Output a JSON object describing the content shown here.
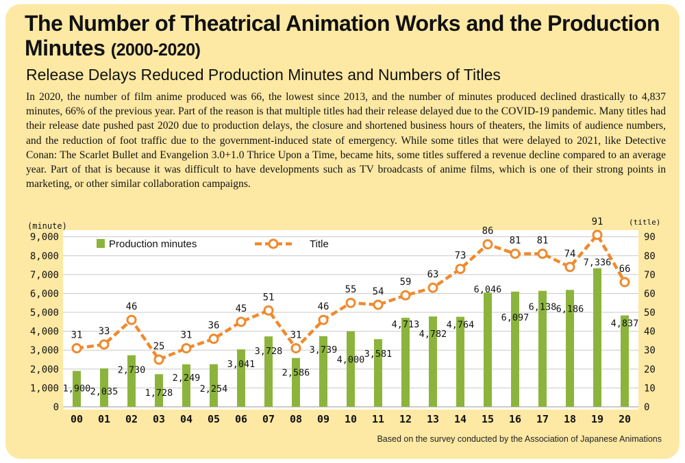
{
  "header": {
    "title_main": "The Number of Theatrical Animation Works and the Production Minutes",
    "title_years": "(2000-2020)",
    "subtitle": "Release Delays Reduced Production Minutes and Numbers of Titles",
    "body": "In 2020, the number of film anime produced was 66, the lowest since 2013, and the number of minutes produced declined drastically to 4,837 minutes, 66% of the previous year. Part of the reason is that multiple titles had their release delayed due to the COVID-19 pandemic. Many titles had their release date pushed past 2020 due to production delays, the closure and shortened business hours of theaters, the limits of audience numbers, and the reduction of foot traffic due to the government-induced state of emergency. While some titles that were delayed to 2021, like Detective Conan: The Scarlet Bullet and Evangelion 3.0+1.0 Thrice Upon a Time, became hits, some titles  suffered a revenue decline compared to an average year. Part of that is because it was difficult to have developments such as TV broadcasts of anime films, which is one of their strong points in marketing, or other similar collaboration campaigns."
  },
  "source": "Based on the survey conducted by the Association of Japanese Animations",
  "chart_data": {
    "type": "bar",
    "title": "The Number of Theatrical Animation Works and the Production Minutes (2000-2020)",
    "categories": [
      "00",
      "01",
      "02",
      "03",
      "04",
      "05",
      "06",
      "07",
      "08",
      "09",
      "10",
      "11",
      "12",
      "13",
      "14",
      "15",
      "16",
      "17",
      "18",
      "19",
      "20"
    ],
    "series": [
      {
        "name": "Production minutes",
        "type": "bar",
        "axis": "left",
        "color": "#8cb43c",
        "values": [
          1900,
          2035,
          2730,
          1728,
          2249,
          2254,
          3041,
          3728,
          2586,
          3739,
          4000,
          3581,
          4713,
          4782,
          4764,
          6046,
          6097,
          6138,
          6186,
          7336,
          4837
        ],
        "labels": [
          "1,900",
          "2,035",
          "2,730",
          "1,728",
          "2,249",
          "2,254",
          "3,041",
          "3,728",
          "2,586",
          "3,739",
          "4,000",
          "3,581",
          "4,713",
          "4,782",
          "4,764",
          "6,046",
          "6,097",
          "6,138",
          "6,186",
          "7,336",
          "4,837"
        ]
      },
      {
        "name": "Title",
        "type": "line",
        "axis": "right",
        "color": "#ef8a2e",
        "values": [
          31,
          33,
          46,
          25,
          31,
          36,
          45,
          51,
          31,
          46,
          55,
          54,
          59,
          63,
          73,
          86,
          81,
          81,
          74,
          91,
          66
        ]
      }
    ],
    "y_left": {
      "label": "(minute)",
      "min": 0,
      "max": 9000,
      "ticks": [
        0,
        1000,
        2000,
        3000,
        4000,
        5000,
        6000,
        7000,
        8000,
        9000
      ],
      "tick_labels": [
        "0",
        "1,000",
        "2,000",
        "3,000",
        "4,000",
        "5,000",
        "6,000",
        "7,000",
        "8,000",
        "9,000"
      ]
    },
    "y_right": {
      "label": "(title)",
      "min": 0,
      "max": 90,
      "ticks": [
        0,
        10,
        20,
        30,
        40,
        50,
        60,
        70,
        80,
        90
      ],
      "tick_labels": [
        "0",
        "10",
        "20",
        "30",
        "40",
        "50",
        "60",
        "70",
        "80",
        "90"
      ]
    },
    "grid": true,
    "legend": {
      "position": "top-left",
      "bar_label": "Production minutes",
      "line_label": "Title"
    }
  }
}
